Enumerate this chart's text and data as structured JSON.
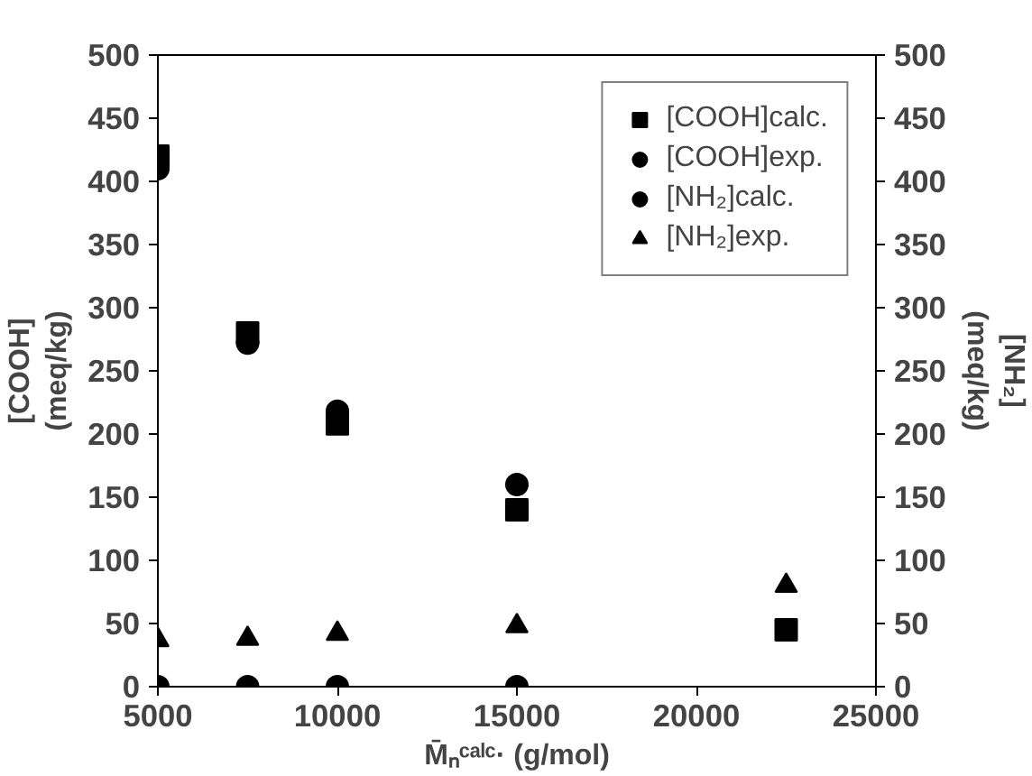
{
  "chart_data": {
    "type": "scatter",
    "xlabel": "M̄ₙᶜᵃˡᶜ· (g/mol)",
    "ylabel": "[COOH]\n(meq/kg)",
    "y2label": "[NH₂]\n(meq/kg)",
    "x": [
      5000,
      7500,
      10000,
      15000,
      22500
    ],
    "series": [
      {
        "name": "[COOH]calc.",
        "color": "#000000",
        "marker": "square",
        "values": [
          420,
          280,
          208,
          140,
          45
        ]
      },
      {
        "name": "[COOH]exp.",
        "color": "#000000",
        "marker": "circle",
        "values": [
          410,
          272,
          218,
          160,
          null
        ]
      },
      {
        "name": "[NH₂]calc.",
        "color": "#000000",
        "marker": "circle",
        "values": [
          0,
          0,
          0,
          0,
          null
        ]
      },
      {
        "name": "[NH₂]exp.",
        "color": "#000000",
        "marker": "triangle",
        "values": [
          37,
          38,
          42,
          48,
          80
        ]
      }
    ],
    "xlim": [
      5000,
      25000
    ],
    "xticks": [
      5000,
      10000,
      15000,
      20000,
      25000
    ],
    "ylim": [
      0,
      500
    ],
    "yticks": [
      0,
      50,
      100,
      150,
      200,
      250,
      300,
      350,
      400,
      450,
      500
    ],
    "y2lim": [
      0,
      500
    ],
    "y2ticks": [
      0,
      50,
      100,
      150,
      200,
      250,
      300,
      350,
      400,
      450,
      500
    ],
    "grid": false,
    "legend": "top right"
  }
}
